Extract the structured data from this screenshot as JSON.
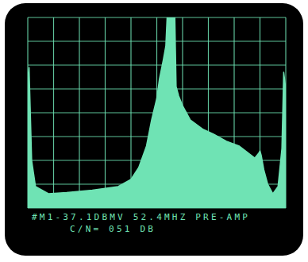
{
  "chart_data": {
    "type": "area",
    "annotations": [
      "#M1-37.1DBMV 52.4MHZ PRE-AMP",
      "C/N= 051 DB"
    ],
    "x": [
      0,
      0.05,
      0.15,
      0.3,
      0.8,
      1.5,
      2.5,
      3.5,
      4.0,
      4.3,
      4.6,
      4.8,
      5.0,
      5.1,
      5.25,
      5.35,
      5.4,
      5.7,
      5.75,
      5.85,
      6.0,
      6.3,
      6.8,
      7.2,
      7.7,
      8.2,
      8.8,
      8.95,
      9.0,
      9.05,
      9.15,
      9.3,
      9.5,
      9.7,
      9.85,
      9.92,
      10
    ],
    "values": [
      5.5,
      5.9,
      2.0,
      0.9,
      0.6,
      0.65,
      0.75,
      0.9,
      1.2,
      1.7,
      2.6,
      3.7,
      4.6,
      5.4,
      6.2,
      6.8,
      8,
      8,
      5.1,
      4.7,
      4.3,
      3.7,
      3.3,
      3.1,
      2.8,
      2.6,
      2.1,
      2.3,
      2.4,
      2.2,
      1.6,
      1.0,
      0.6,
      0.9,
      2.5,
      5.7,
      5.0
    ],
    "xlim": [
      0,
      10
    ],
    "ylim": [
      0,
      8
    ],
    "xticks": [
      0,
      1,
      2,
      3,
      4,
      5,
      6,
      7,
      8,
      9,
      10
    ],
    "yticks": [
      0,
      1,
      2,
      3,
      4,
      5,
      6,
      7,
      8
    ],
    "grid": true,
    "tick_labels": false,
    "color": "#6fe3b4"
  }
}
